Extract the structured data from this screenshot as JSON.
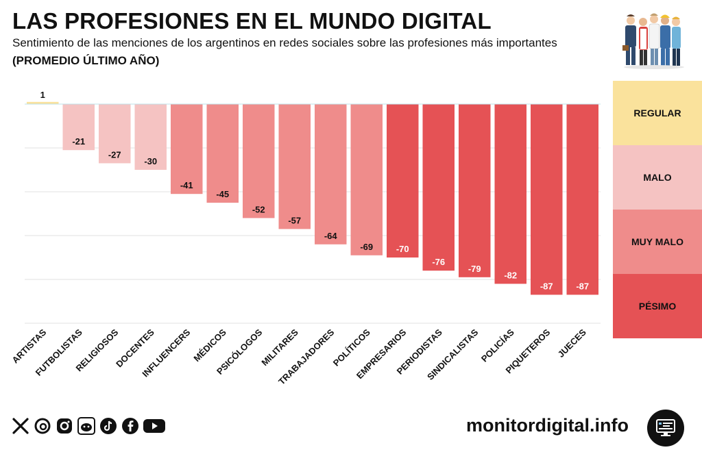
{
  "header": {
    "title": "LAS PROFESIONES EN EL MUNDO DIGITAL",
    "subtitle": "Sentimiento de las menciones de los argentinos en redes sociales sobre las profesiones más importantes",
    "period": "(PROMEDIO ÚLTIMO AÑO)"
  },
  "legend": [
    {
      "label": "REGULAR",
      "color": "#FAE29C"
    },
    {
      "label": "MALO",
      "color": "#F5C3C2"
    },
    {
      "label": "MUY MALO",
      "color": "#EF8C8B"
    },
    {
      "label": "PÉSIMO",
      "color": "#E55255"
    }
  ],
  "chart_data": {
    "type": "bar",
    "categories": [
      "ARTISTAS",
      "FUTBOLISTAS",
      "RELIGIOSOS",
      "DOCENTES",
      "INFLUENCERS",
      "MÉDICOS",
      "PSICÓLOGOS",
      "MILITARES",
      "TRABAJADORES",
      "POLÍTICOS",
      "EMPRESARIOS",
      "PERIODISTAS",
      "SINDICALISTAS",
      "POLICÍAS",
      "PIQUETEROS",
      "JUECES"
    ],
    "values": [
      1,
      -21,
      -27,
      -30,
      -41,
      -45,
      -52,
      -57,
      -64,
      -69,
      -70,
      -76,
      -79,
      -82,
      -87,
      -87
    ],
    "levels": [
      "REGULAR",
      "MALO",
      "MALO",
      "MALO",
      "MUY MALO",
      "MUY MALO",
      "MUY MALO",
      "MUY MALO",
      "MUY MALO",
      "MUY MALO",
      "PÉSIMO",
      "PÉSIMO",
      "PÉSIMO",
      "PÉSIMO",
      "PÉSIMO",
      "PÉSIMO"
    ],
    "ylim": [
      -100,
      0
    ],
    "grid": true
  },
  "footer": {
    "social_icons": [
      "x-icon",
      "threads-icon",
      "instagram-icon",
      "reddit-icon",
      "tiktok-icon",
      "facebook-icon",
      "youtube-icon"
    ],
    "brand": "monitordigital.info"
  }
}
